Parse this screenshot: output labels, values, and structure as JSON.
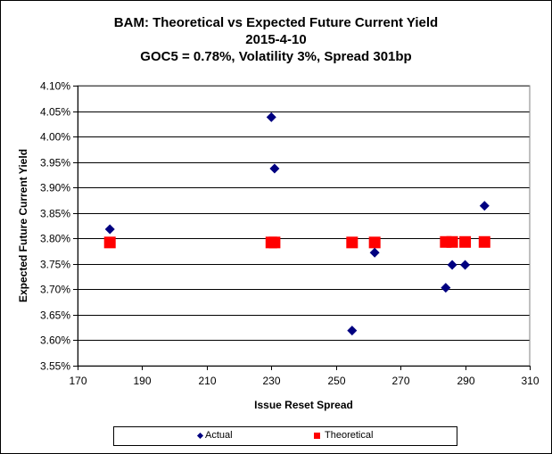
{
  "chart_data": {
    "type": "scatter",
    "title_lines": [
      "BAM: Theoretical vs Expected Future Current Yield",
      "2015-4-10",
      "GOC5 = 0.78%, Volatility 3%, Spread 301bp"
    ],
    "xlabel": "Issue Reset Spread",
    "ylabel": "Expected Future Current Yield",
    "xlim": [
      170,
      310
    ],
    "ylim": [
      3.55,
      4.1
    ],
    "x_ticks": [
      170,
      190,
      210,
      230,
      250,
      270,
      290,
      310
    ],
    "x_tick_labels": [
      "170",
      "190",
      "210",
      "230",
      "250",
      "270",
      "290",
      "310"
    ],
    "y_ticks": [
      3.55,
      3.6,
      3.65,
      3.7,
      3.75,
      3.8,
      3.85,
      3.9,
      3.95,
      4.0,
      4.05,
      4.1
    ],
    "y_tick_labels": [
      "3.55%",
      "3.60%",
      "3.65%",
      "3.70%",
      "3.75%",
      "3.80%",
      "3.85%",
      "3.90%",
      "3.95%",
      "4.00%",
      "4.05%",
      "4.10%"
    ],
    "grid": "horizontal",
    "legend_position": "bottom",
    "series": [
      {
        "name": "Actual",
        "marker": "diamond",
        "color": "#000080",
        "points": [
          {
            "x": 180,
            "y": 3.818
          },
          {
            "x": 230,
            "y": 4.038
          },
          {
            "x": 231,
            "y": 3.937
          },
          {
            "x": 255,
            "y": 3.619
          },
          {
            "x": 262,
            "y": 3.772
          },
          {
            "x": 284,
            "y": 3.703
          },
          {
            "x": 286,
            "y": 3.748
          },
          {
            "x": 290,
            "y": 3.748
          },
          {
            "x": 296,
            "y": 3.864
          }
        ]
      },
      {
        "name": "Theoretical",
        "marker": "square",
        "color": "#ff0000",
        "points": [
          {
            "x": 180,
            "y": 3.792
          },
          {
            "x": 230,
            "y": 3.792
          },
          {
            "x": 231,
            "y": 3.792
          },
          {
            "x": 255,
            "y": 3.792
          },
          {
            "x": 262,
            "y": 3.792
          },
          {
            "x": 284,
            "y": 3.793
          },
          {
            "x": 286,
            "y": 3.793
          },
          {
            "x": 290,
            "y": 3.793
          },
          {
            "x": 296,
            "y": 3.793
          }
        ]
      }
    ]
  }
}
